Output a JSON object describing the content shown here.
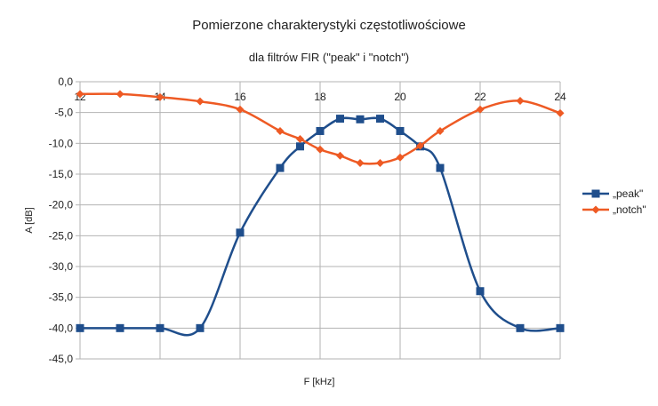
{
  "chart_data": {
    "type": "line",
    "title": "Pomierzone charakterystyki częstotliwościowe",
    "subtitle": "dla filtrów FIR (\"peak\" i \"notch\")",
    "xlabel": "F [kHz]",
    "ylabel": "A [dB]",
    "xlim": [
      12,
      24
    ],
    "ylim": [
      -45,
      0
    ],
    "x_ticks": [
      12,
      14,
      16,
      18,
      20,
      22,
      24
    ],
    "x_tick_labels": [
      "12",
      "14",
      "16",
      "18",
      "20",
      "22",
      "24"
    ],
    "y_ticks": [
      0,
      -5,
      -10,
      -15,
      -20,
      -25,
      -30,
      -35,
      -40,
      -45
    ],
    "y_tick_labels": [
      "0,0",
      "-5,0",
      "-10,0",
      "-15,0",
      "-20,0",
      "-25,0",
      "-30,0",
      "-35,0",
      "-40,0",
      "-45,0"
    ],
    "grid": true,
    "legend_position": "right",
    "series": [
      {
        "name": "„peak\"",
        "color": "#1f4e8c",
        "marker": "square",
        "x": [
          12,
          13,
          14,
          15,
          16,
          17,
          17.5,
          18,
          18.5,
          19,
          19.5,
          20,
          20.5,
          21,
          22,
          23,
          24
        ],
        "y": [
          -40,
          -40,
          -40,
          -40,
          -24.5,
          -14,
          -10.5,
          -8,
          -6,
          -6.1,
          -6,
          -8,
          -10.5,
          -14,
          -34,
          -40,
          -40
        ]
      },
      {
        "name": "„notch\"",
        "color": "#ee5a24",
        "marker": "diamond",
        "x": [
          12,
          13,
          14,
          15,
          16,
          17,
          17.5,
          18,
          18.5,
          19,
          19.5,
          20,
          20.5,
          21,
          22,
          23,
          24
        ],
        "y": [
          -2,
          -2,
          -2.5,
          -3.2,
          -4.5,
          -8,
          -9.3,
          -11,
          -12,
          -13.2,
          -13.2,
          -12.3,
          -10.4,
          -8,
          -4.5,
          -3.1,
          -5.1
        ]
      }
    ]
  }
}
